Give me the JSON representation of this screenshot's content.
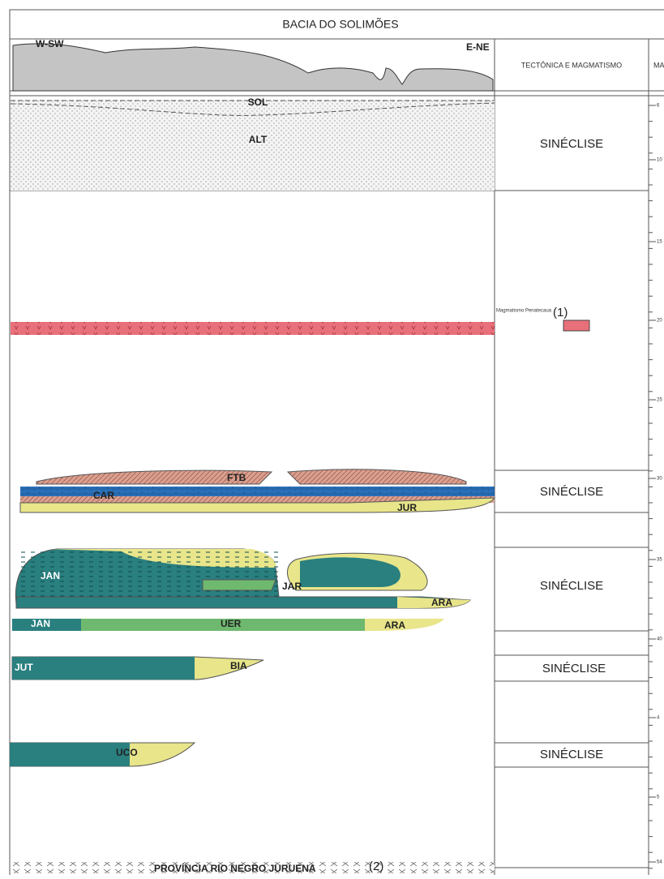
{
  "header": {
    "title": "BACIA DO SOLIMÕES"
  },
  "profile": {
    "west": "W-SW",
    "east": "E-NE"
  },
  "columns": {
    "tectonics": "TECTÔNICA E MAGMATISMO",
    "next": "MA"
  },
  "units": [
    "SOL",
    "ALT",
    "FTB",
    "CAR",
    "JUR",
    "JAN",
    "JAR",
    "ARA",
    "JAN",
    "UER",
    "ARA",
    "JUT",
    "BIA",
    "UCO"
  ],
  "tectonics": [
    "SINÉCLISE",
    "SINÉCLISE",
    "SINÉCLISE",
    "SINÉCLISE",
    "SINÉCLISE"
  ],
  "magmatism": {
    "label": "Magmatismo Penatecaua",
    "note": "(1)"
  },
  "basement": {
    "label": "PROVÍNCIA RIO NEGRO JURUENA",
    "note": "(2)"
  },
  "time_axis": [
    "6",
    "10",
    "15",
    "20",
    "25",
    "30",
    "35",
    "40",
    "4",
    "5",
    "54"
  ]
}
